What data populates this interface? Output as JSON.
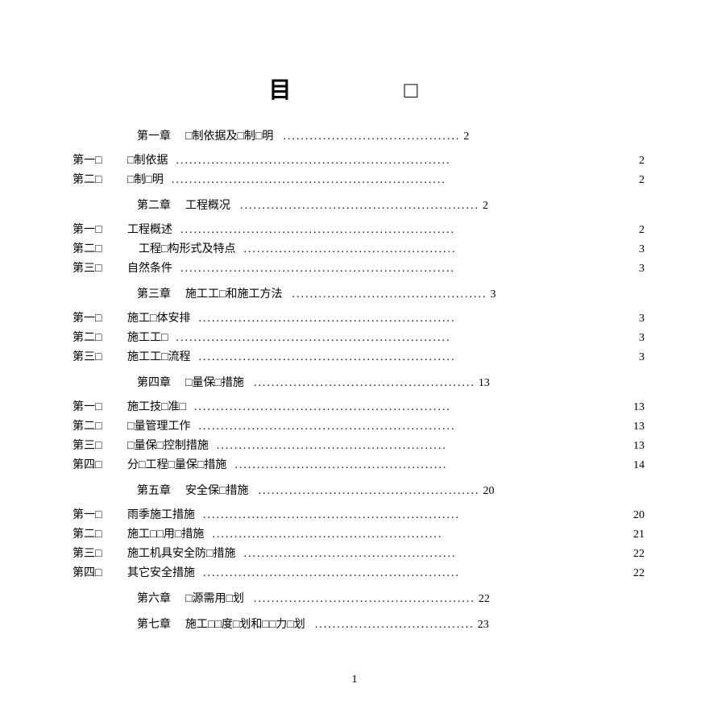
{
  "colors": {
    "background": "#ffffff",
    "text": "#000000"
  },
  "typography": {
    "body_fontsize_pt": 11,
    "title_fontsize_pt": 22,
    "font_family": "SimSun / Songti"
  },
  "title": "目　　□",
  "page_number": "1",
  "dot_char": ".",
  "box_char": "□",
  "toc": [
    {
      "type": "chapter",
      "label": "第一章",
      "title": "□制依据及□制□明",
      "dots": "........................................",
      "page": "2"
    },
    {
      "type": "section",
      "label": "第一□",
      "title": "□制依据",
      "dots": "..............................................................",
      "page": "2"
    },
    {
      "type": "section",
      "label": "第二□",
      "title": "□制□明",
      "dots": "..............................................................",
      "page": "2"
    },
    {
      "type": "chapter",
      "label": "第二章",
      "title": "工程概况",
      "dots": "......................................................",
      "page": "2"
    },
    {
      "type": "section",
      "label": "第一□",
      "title": "工程概述",
      "dots": "..............................................................",
      "page": "2"
    },
    {
      "type": "section",
      "label": "第二□",
      "title": "　工程□构形式及特点",
      "dots": "................................................",
      "page": "3"
    },
    {
      "type": "section",
      "label": "第三□",
      "title": "自然条件",
      "dots": "..............................................................",
      "page": "3"
    },
    {
      "type": "chapter",
      "label": "第三章",
      "title": "施工工□和施工方法",
      "dots": "............................................",
      "page": "3"
    },
    {
      "type": "section",
      "label": "第一□",
      "title": "施工□体安排",
      "dots": "..........................................................",
      "page": "3"
    },
    {
      "type": "section",
      "label": "第二□",
      "title": "施工工□",
      "dots": "..............................................................",
      "page": "3"
    },
    {
      "type": "section",
      "label": "第三□",
      "title": "施工工□流程",
      "dots": "..........................................................",
      "page": "3"
    },
    {
      "type": "chapter",
      "label": "第四章",
      "title": "□量保□措施",
      "dots": "..................................................",
      "page": "13"
    },
    {
      "type": "section",
      "label": "第一□",
      "title": "施工技□准□",
      "dots": "..........................................................",
      "page": "13"
    },
    {
      "type": "section",
      "label": "第二□",
      "title": "□量管理工作",
      "dots": "..........................................................",
      "page": "13"
    },
    {
      "type": "section",
      "label": "第三□",
      "title": "□量保□控制措施",
      "dots": "....................................................",
      "page": "13"
    },
    {
      "type": "section",
      "label": "第四□",
      "title": "分□工程□量保□措施",
      "dots": "................................................",
      "page": "14"
    },
    {
      "type": "chapter",
      "label": "第五章",
      "title": "安全保□措施",
      "dots": "..................................................",
      "page": "20"
    },
    {
      "type": "section",
      "label": "第一□",
      "title": "雨季施工措施",
      "dots": "..........................................................",
      "page": "20"
    },
    {
      "type": "section",
      "label": "第二□",
      "title": "施工□□用□措施",
      "dots": "....................................................",
      "page": "21"
    },
    {
      "type": "section",
      "label": "第三□",
      "title": "施工机具安全防□措施",
      "dots": "................................................",
      "page": "22"
    },
    {
      "type": "section",
      "label": "第四□",
      "title": "其它安全措施",
      "dots": "..........................................................",
      "page": "22"
    },
    {
      "type": "chapter",
      "label": "第六章",
      "title": "□源需用□划",
      "dots": "..................................................",
      "page": "22"
    },
    {
      "type": "chapter",
      "label": "第七章",
      "title": "施工□□度□划和□□力□划",
      "dots": "....................................",
      "page": "23"
    }
  ]
}
